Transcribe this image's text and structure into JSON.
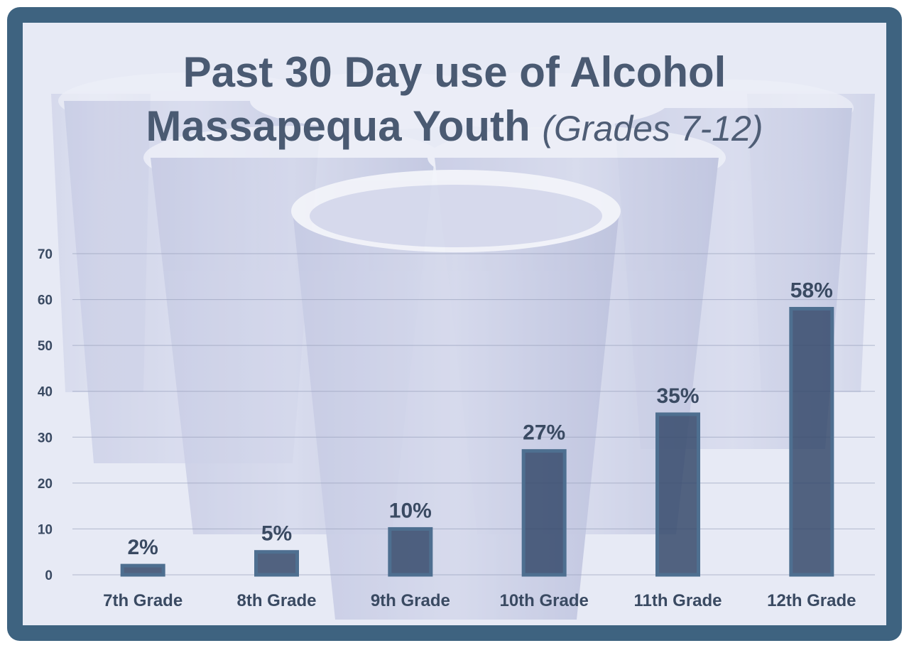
{
  "colors": {
    "frame": "#3e6380",
    "bar_fill": "#2f4466",
    "bar_stroke": "#4e6f90",
    "text": "#3a4a62",
    "background": "#dfe3f2"
  },
  "chart_data": {
    "type": "bar",
    "title_line1": "Past 30 Day use of Alcohol",
    "title_line2": "Massapequa Youth",
    "title_suffix": "(Grades 7-12)",
    "categories": [
      "7th Grade",
      "8th Grade",
      "9th Grade",
      "10th Grade",
      "11th Grade",
      "12th Grade"
    ],
    "values": [
      2,
      5,
      10,
      27,
      35,
      58
    ],
    "data_labels": [
      "2%",
      "5%",
      "10%",
      "27%",
      "35%",
      "58%"
    ],
    "ylim": [
      0,
      70
    ],
    "yticks": [
      "0",
      "10",
      "20",
      "30",
      "40",
      "50",
      "60",
      "70"
    ],
    "grid": true,
    "xlabel": "",
    "ylabel": ""
  }
}
